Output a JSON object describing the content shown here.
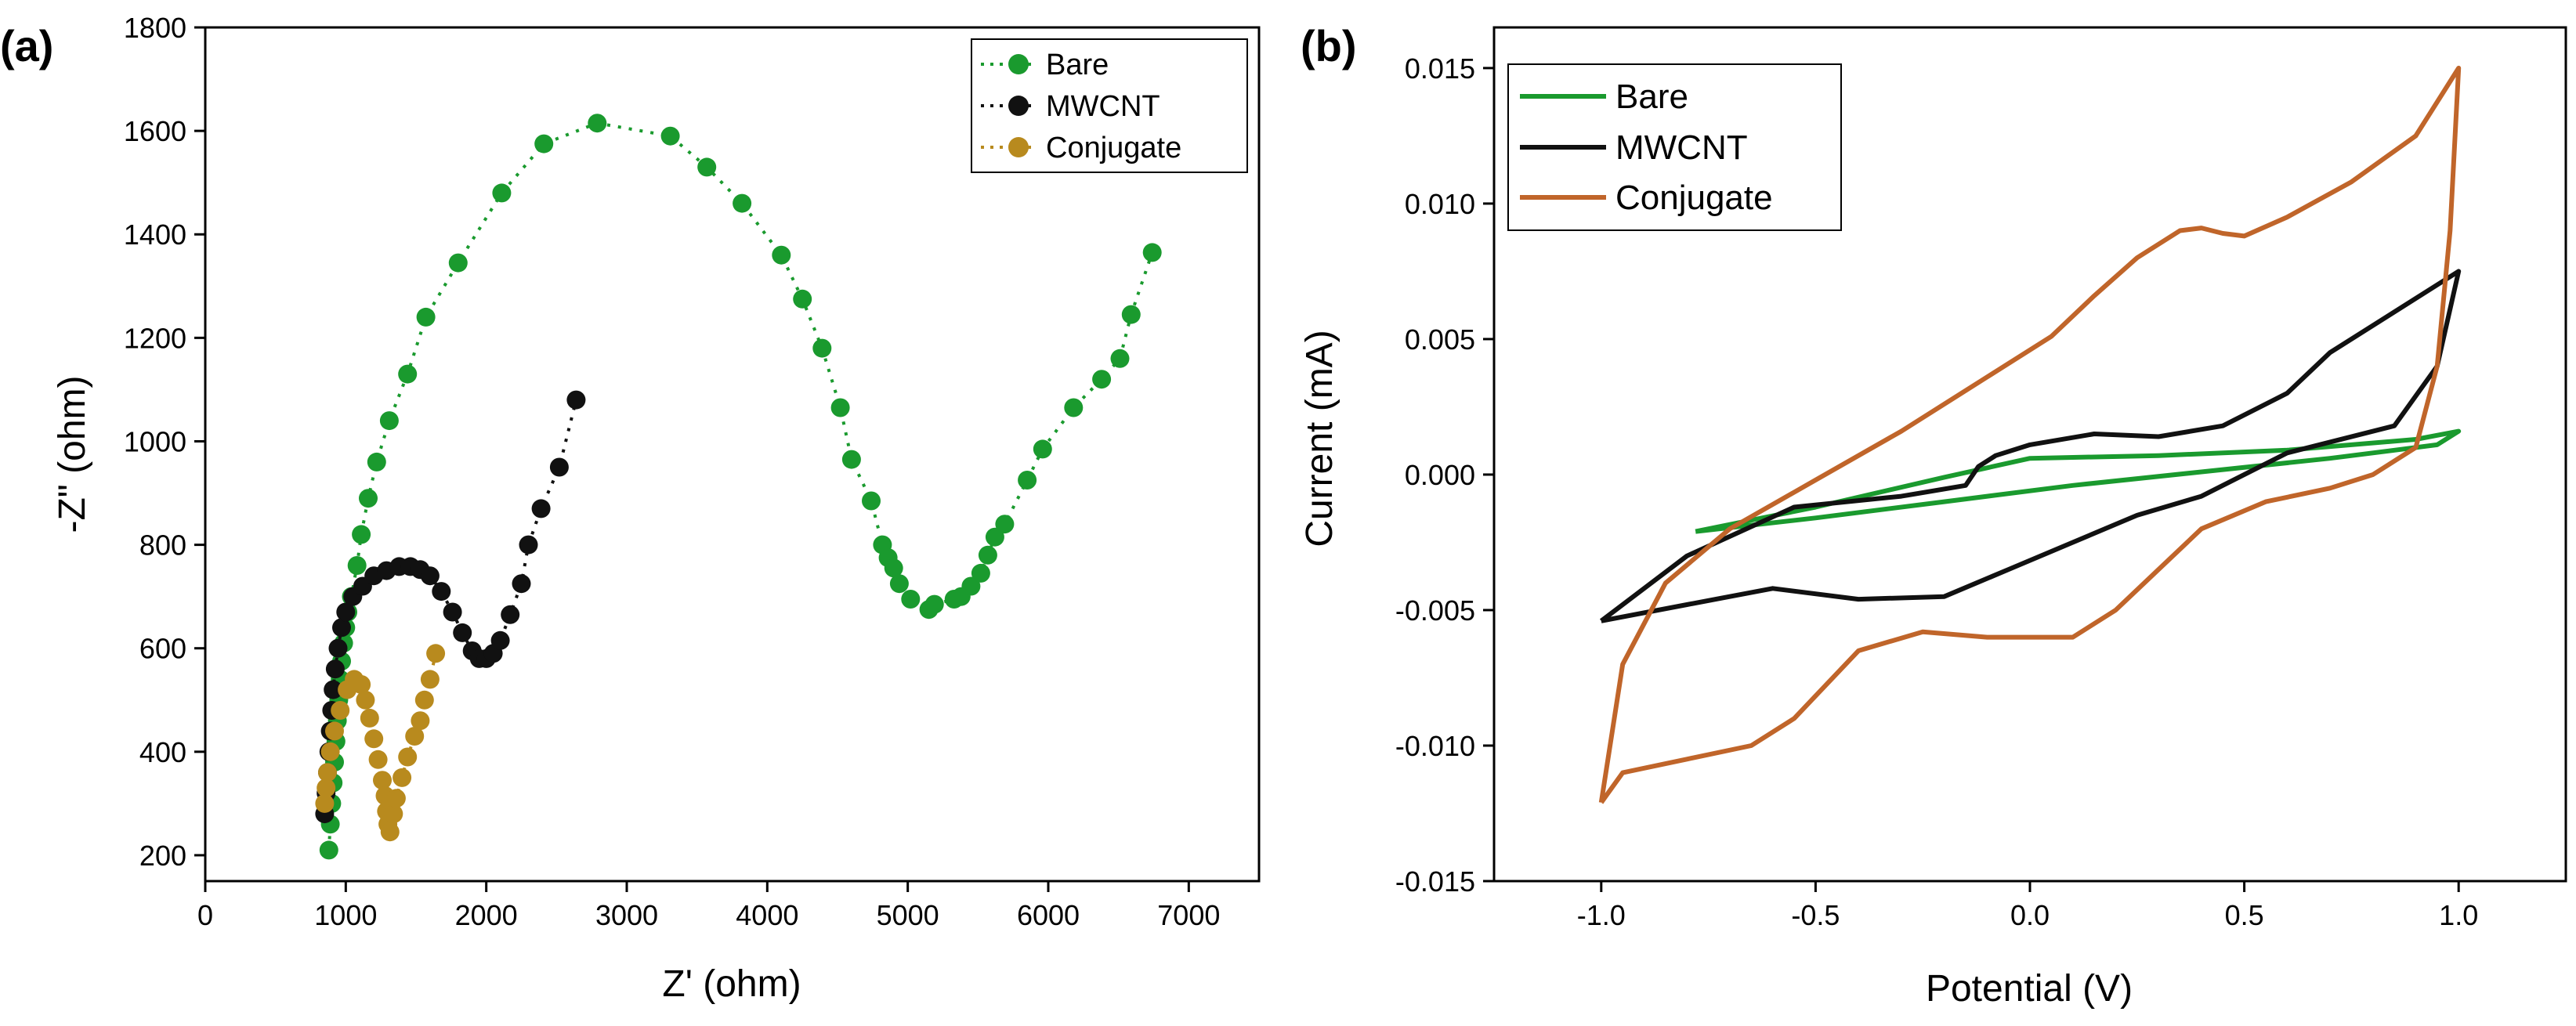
{
  "chart_data": [
    {
      "panel_label": "(a)",
      "type": "scatter",
      "title": "",
      "xlabel": "Z' (ohm)",
      "ylabel": "-Z\" (ohm)",
      "xlim": [
        0,
        7500
      ],
      "ylim": [
        150,
        1800
      ],
      "xticks": [
        "0",
        "1000",
        "2000",
        "3000",
        "4000",
        "5000",
        "6000",
        "7000"
      ],
      "yticks": [
        "200",
        "400",
        "600",
        "800",
        "1000",
        "1200",
        "1400",
        "1600",
        "1800"
      ],
      "legend_position": "top-right",
      "series": [
        {
          "name": "Bare",
          "color": "#1a9a2e",
          "points": [
            [
              880,
              210
            ],
            [
              890,
              260
            ],
            [
              900,
              300
            ],
            [
              910,
              340
            ],
            [
              920,
              380
            ],
            [
              930,
              420
            ],
            [
              940,
              460
            ],
            [
              950,
              500
            ],
            [
              960,
              540
            ],
            [
              970,
              575
            ],
            [
              985,
              610
            ],
            [
              1000,
              640
            ],
            [
              1015,
              670
            ],
            [
              1040,
              700
            ],
            [
              1080,
              760
            ],
            [
              1110,
              820
            ],
            [
              1160,
              890
            ],
            [
              1220,
              960
            ],
            [
              1310,
              1040
            ],
            [
              1440,
              1130
            ],
            [
              1570,
              1240
            ],
            [
              1800,
              1345
            ],
            [
              2110,
              1480
            ],
            [
              2410,
              1575
            ],
            [
              2790,
              1615
            ],
            [
              3310,
              1590
            ],
            [
              3570,
              1530
            ],
            [
              3820,
              1460
            ],
            [
              4100,
              1360
            ],
            [
              4250,
              1275
            ],
            [
              4390,
              1180
            ],
            [
              4520,
              1065
            ],
            [
              4600,
              965
            ],
            [
              4740,
              885
            ],
            [
              4820,
              800
            ],
            [
              4860,
              775
            ],
            [
              4900,
              755
            ],
            [
              4940,
              725
            ],
            [
              5020,
              695
            ],
            [
              5150,
              675
            ],
            [
              5190,
              685
            ],
            [
              5330,
              695
            ],
            [
              5380,
              700
            ],
            [
              5450,
              720
            ],
            [
              5520,
              745
            ],
            [
              5570,
              780
            ],
            [
              5620,
              815
            ],
            [
              5690,
              840
            ],
            [
              5850,
              925
            ],
            [
              5960,
              985
            ],
            [
              6180,
              1065
            ],
            [
              6380,
              1120
            ],
            [
              6510,
              1160
            ],
            [
              6590,
              1245
            ],
            [
              6740,
              1365
            ]
          ]
        },
        {
          "name": "MWCNT",
          "color": "#111111",
          "points": [
            [
              850,
              280
            ],
            [
              860,
              320
            ],
            [
              870,
              360
            ],
            [
              880,
              400
            ],
            [
              890,
              440
            ],
            [
              900,
              480
            ],
            [
              910,
              520
            ],
            [
              925,
              560
            ],
            [
              945,
              600
            ],
            [
              970,
              640
            ],
            [
              1000,
              670
            ],
            [
              1050,
              700
            ],
            [
              1120,
              720
            ],
            [
              1200,
              740
            ],
            [
              1290,
              750
            ],
            [
              1380,
              758
            ],
            [
              1460,
              758
            ],
            [
              1530,
              752
            ],
            [
              1600,
              740
            ],
            [
              1680,
              710
            ],
            [
              1760,
              670
            ],
            [
              1830,
              630
            ],
            [
              1900,
              595
            ],
            [
              1950,
              580
            ],
            [
              2000,
              580
            ],
            [
              2050,
              590
            ],
            [
              2100,
              615
            ],
            [
              2170,
              665
            ],
            [
              2250,
              725
            ],
            [
              2300,
              800
            ],
            [
              2390,
              870
            ],
            [
              2520,
              950
            ],
            [
              2640,
              1080
            ]
          ]
        },
        {
          "name": "Conjugate",
          "color": "#b88a1e",
          "points": [
            [
              850,
              300
            ],
            [
              860,
              330
            ],
            [
              870,
              360
            ],
            [
              890,
              400
            ],
            [
              920,
              440
            ],
            [
              960,
              480
            ],
            [
              1010,
              520
            ],
            [
              1060,
              540
            ],
            [
              1110,
              530
            ],
            [
              1140,
              500
            ],
            [
              1170,
              465
            ],
            [
              1200,
              425
            ],
            [
              1230,
              385
            ],
            [
              1260,
              345
            ],
            [
              1280,
              315
            ],
            [
              1290,
              285
            ],
            [
              1300,
              260
            ],
            [
              1315,
              245
            ],
            [
              1340,
              280
            ],
            [
              1360,
              310
            ],
            [
              1400,
              350
            ],
            [
              1440,
              390
            ],
            [
              1490,
              430
            ],
            [
              1530,
              460
            ],
            [
              1560,
              500
            ],
            [
              1600,
              540
            ],
            [
              1640,
              590
            ]
          ]
        }
      ]
    },
    {
      "panel_label": "(b)",
      "type": "line",
      "title": "",
      "xlabel": "Potential (V)",
      "ylabel": "Current (mA)",
      "xlim": [
        -1.25,
        1.25
      ],
      "ylim": [
        -0.015,
        0.0165
      ],
      "xticks": [
        "-1.0",
        "-0.5",
        "0.0",
        "0.5",
        "1.0"
      ],
      "yticks": [
        "-0.015",
        "-0.010",
        "-0.005",
        "0.000",
        "0.005",
        "0.010",
        "0.015"
      ],
      "legend_position": "top-left",
      "series": [
        {
          "name": "Bare",
          "color": "#1a9a2e",
          "points": [
            [
              -0.78,
              -0.0021
            ],
            [
              -0.5,
              -0.0012
            ],
            [
              -0.2,
              -0.0001
            ],
            [
              0.0,
              0.0006
            ],
            [
              0.3,
              0.0007
            ],
            [
              0.6,
              0.0009
            ],
            [
              0.9,
              0.0013
            ],
            [
              1.0,
              0.0016
            ],
            [
              0.95,
              0.0011
            ],
            [
              0.7,
              0.0006
            ],
            [
              0.4,
              0.0001
            ],
            [
              0.1,
              -0.0004
            ],
            [
              -0.2,
              -0.001
            ],
            [
              -0.5,
              -0.0016
            ],
            [
              -0.78,
              -0.0021
            ]
          ]
        },
        {
          "name": "MWCNT",
          "color": "#111111",
          "points": [
            [
              -1.0,
              -0.0054
            ],
            [
              -0.8,
              -0.003
            ],
            [
              -0.55,
              -0.0012
            ],
            [
              -0.3,
              -0.0008
            ],
            [
              -0.15,
              -0.0004
            ],
            [
              -0.12,
              0.0003
            ],
            [
              -0.08,
              0.0007
            ],
            [
              0.0,
              0.0011
            ],
            [
              0.15,
              0.0015
            ],
            [
              0.3,
              0.0014
            ],
            [
              0.45,
              0.0018
            ],
            [
              0.6,
              0.003
            ],
            [
              0.7,
              0.0045
            ],
            [
              0.85,
              0.006
            ],
            [
              1.0,
              0.0075
            ],
            [
              0.95,
              0.004
            ],
            [
              0.85,
              0.0018
            ],
            [
              0.6,
              0.0008
            ],
            [
              0.4,
              -0.0008
            ],
            [
              0.25,
              -0.0015
            ],
            [
              0.1,
              -0.0025
            ],
            [
              -0.05,
              -0.0035
            ],
            [
              -0.2,
              -0.0045
            ],
            [
              -0.4,
              -0.0046
            ],
            [
              -0.6,
              -0.0042
            ],
            [
              -0.8,
              -0.0048
            ],
            [
              -1.0,
              -0.0054
            ]
          ]
        },
        {
          "name": "Conjugate",
          "color": "#c0652a",
          "points": [
            [
              -1.0,
              -0.0121
            ],
            [
              -0.95,
              -0.007
            ],
            [
              -0.85,
              -0.004
            ],
            [
              -0.7,
              -0.002
            ],
            [
              -0.5,
              -0.0002
            ],
            [
              -0.3,
              0.0016
            ],
            [
              -0.1,
              0.0036
            ],
            [
              0.05,
              0.0051
            ],
            [
              0.15,
              0.0066
            ],
            [
              0.25,
              0.008
            ],
            [
              0.35,
              0.009
            ],
            [
              0.4,
              0.0091
            ],
            [
              0.45,
              0.0089
            ],
            [
              0.5,
              0.0088
            ],
            [
              0.6,
              0.0095
            ],
            [
              0.75,
              0.0108
            ],
            [
              0.9,
              0.0125
            ],
            [
              1.0,
              0.015
            ],
            [
              0.98,
              0.009
            ],
            [
              0.95,
              0.004
            ],
            [
              0.9,
              0.001
            ],
            [
              0.8,
              0.0
            ],
            [
              0.7,
              -0.0005
            ],
            [
              0.55,
              -0.001
            ],
            [
              0.4,
              -0.002
            ],
            [
              0.3,
              -0.0035
            ],
            [
              0.2,
              -0.005
            ],
            [
              0.1,
              -0.006
            ],
            [
              -0.1,
              -0.006
            ],
            [
              -0.25,
              -0.0058
            ],
            [
              -0.4,
              -0.0065
            ],
            [
              -0.55,
              -0.009
            ],
            [
              -0.65,
              -0.01
            ],
            [
              -0.8,
              -0.0105
            ],
            [
              -0.95,
              -0.011
            ],
            [
              -1.0,
              -0.0121
            ]
          ]
        }
      ]
    }
  ]
}
